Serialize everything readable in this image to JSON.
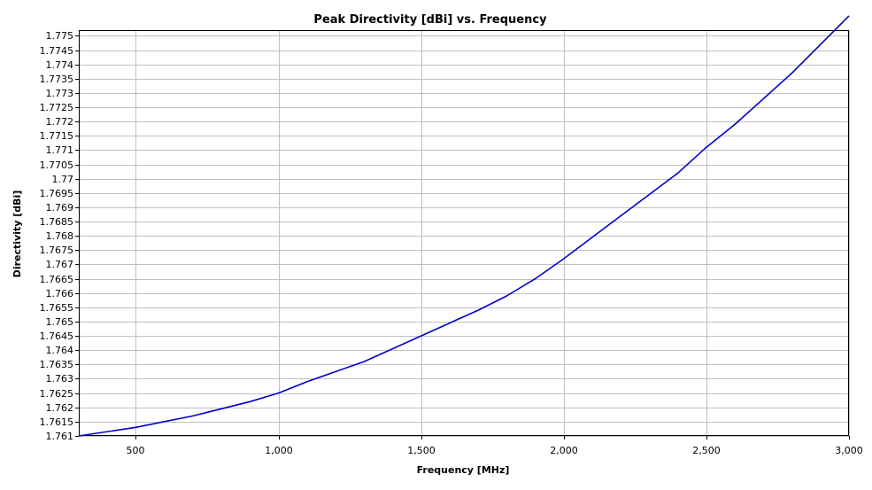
{
  "chart_data": {
    "type": "line",
    "title": "Peak Directivity [dBi] vs. Frequency",
    "xlabel": "Frequency [MHz]",
    "ylabel": "Directivity [dBi]",
    "xlim": [
      300,
      3000
    ],
    "ylim": [
      1.761,
      1.7752
    ],
    "x_ticks": [
      500,
      1000,
      1500,
      2000,
      2500,
      3000
    ],
    "x_tick_labels": [
      "500",
      "1,000",
      "1,500",
      "2,000",
      "2,500",
      "3,000"
    ],
    "y_ticks": [
      1.761,
      1.7615,
      1.762,
      1.7625,
      1.763,
      1.7635,
      1.764,
      1.7645,
      1.765,
      1.7655,
      1.766,
      1.7665,
      1.767,
      1.7675,
      1.768,
      1.7685,
      1.769,
      1.7695,
      1.77,
      1.7705,
      1.771,
      1.7715,
      1.772,
      1.7725,
      1.773,
      1.7735,
      1.774,
      1.7745,
      1.775
    ],
    "y_tick_labels": [
      "1.761",
      "1.7615",
      "1.762",
      "1.7625",
      "1.763",
      "1.7635",
      "1.764",
      "1.7645",
      "1.765",
      "1.7655",
      "1.766",
      "1.7665",
      "1.767",
      "1.7675",
      "1.768",
      "1.7685",
      "1.769",
      "1.7695",
      "1.77",
      "1.7705",
      "1.771",
      "1.7715",
      "1.772",
      "1.7725",
      "1.773",
      "1.7735",
      "1.774",
      "1.7745",
      "1.775"
    ],
    "grid": true,
    "legend": "none",
    "series": [
      {
        "color": "#0000cc",
        "x": [
          300,
          500,
          700,
          900,
          1000,
          1100,
          1300,
          1500,
          1700,
          1800,
          1900,
          2000,
          2200,
          2400,
          2500,
          2600,
          2800,
          3000
        ],
        "y": [
          1.761,
          1.7613,
          1.7617,
          1.7622,
          1.7625,
          1.7629,
          1.7636,
          1.7645,
          1.7654,
          1.7659,
          1.7665,
          1.7672,
          1.7687,
          1.7702,
          1.7711,
          1.7719,
          1.7737,
          1.7757
        ]
      }
    ]
  }
}
